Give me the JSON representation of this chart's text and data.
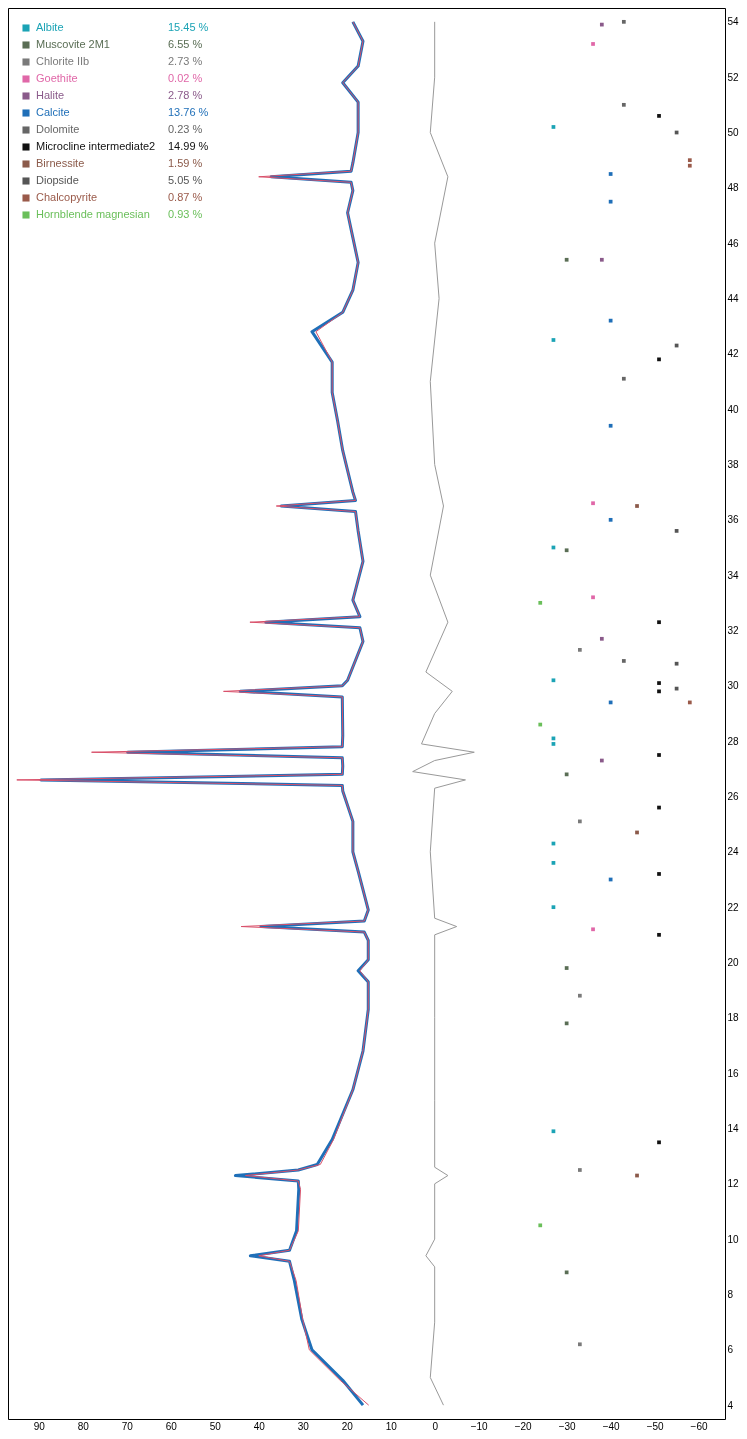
{
  "chart_data": {
    "type": "line",
    "ylim": [
      3.5,
      54.5
    ],
    "yticks": [
      4,
      6,
      8,
      10,
      12,
      14,
      16,
      18,
      20,
      22,
      24,
      26,
      28,
      30,
      32,
      34,
      36,
      38,
      40,
      42,
      44,
      46,
      48,
      50,
      52,
      54
    ],
    "xlim": [
      97,
      -66
    ],
    "xticks": [
      90,
      80,
      70,
      60,
      50,
      40,
      30,
      20,
      10,
      0,
      -10,
      -20,
      -30,
      -40,
      -50,
      -60
    ],
    "legend": "top left",
    "annotations": [
      "15.45 %",
      "6.55 %",
      "2.73 %",
      "0.02 %",
      "2.78 %",
      "13.76 %",
      "0.23 %",
      "14.99 %",
      "1.59 %",
      "5.05 %",
      "0.87 %",
      "0.93 %"
    ],
    "series": [
      {
        "color": "#1f6fb8",
        "values": [
          4.0,
          4.9,
          6.0,
          7.1,
          8.5,
          9.2,
          9.4,
          9.6,
          10.3,
          11.8,
          12.1,
          12.3,
          12.5,
          12.7,
          13.6,
          15.4,
          16.8,
          18.3,
          19.3,
          19.7,
          20.1,
          20.8,
          21.1,
          21.3,
          21.5,
          21.9,
          23.3,
          24.0,
          25.1,
          26.2,
          26.4,
          26.6,
          26.8,
          27.1,
          27.4,
          27.6,
          27.8,
          28.2,
          29.6,
          29.8,
          30.0,
          30.2,
          31.6,
          32.1,
          32.3,
          32.5,
          33.1,
          34.5,
          35.6,
          36.3,
          36.5,
          36.7,
          37.0,
          38.5,
          39.6,
          40.6,
          41.7,
          42.8,
          43.5,
          44.3,
          45.3,
          46.2,
          47.1,
          47.9,
          48.2,
          48.4,
          48.6,
          48.9,
          50.0,
          51.1,
          51.8,
          52.4,
          53.3,
          54.0
        ],
        "x": [
          16.3,
          20.9,
          27.9,
          30.2,
          31.9,
          33,
          41.9,
          33,
          31.4,
          30.9,
          31,
          45.3,
          31,
          26.7,
          23.3,
          18.6,
          16.3,
          15.1,
          15.1,
          17.4,
          15.1,
          15.1,
          16,
          39.5,
          16,
          15.1,
          17.4,
          18.6,
          18.6,
          20.9,
          21,
          89.5,
          21,
          20.9,
          21,
          69.8,
          21,
          20.9,
          21,
          44.2,
          21,
          19.8,
          16.3,
          17,
          38.4,
          17,
          18.6,
          16.3,
          17.4,
          18,
          34.9,
          18,
          18.6,
          20.9,
          22.1,
          23.3,
          23.3,
          27.9,
          20.9,
          18.6,
          17.4,
          18.6,
          19.8,
          18.6,
          19,
          37.2,
          19,
          18.6,
          17.4,
          17.4,
          20.9,
          17.4,
          16.3,
          18.6
        ]
      },
      {
        "color": "#d9506a",
        "values": [
          4.0,
          4.9,
          6.0,
          7.1,
          8.5,
          9.2,
          9.4,
          9.6,
          10.3,
          11.8,
          12.1,
          12.3,
          12.5,
          12.7,
          13.6,
          15.4,
          16.8,
          18.3,
          19.3,
          19.7,
          20.1,
          20.8,
          21.1,
          21.3,
          21.5,
          21.9,
          23.3,
          24.0,
          25.1,
          26.2,
          26.4,
          26.6,
          26.8,
          27.1,
          27.4,
          27.6,
          27.8,
          28.2,
          29.6,
          29.8,
          30.0,
          30.2,
          31.6,
          32.1,
          32.3,
          32.5,
          33.1,
          34.5,
          35.6,
          36.3,
          36.5,
          36.7,
          37.0,
          38.5,
          39.6,
          40.6,
          41.7,
          42.8,
          43.5,
          44.3,
          45.3,
          46.2,
          47.1,
          47.9,
          48.2,
          48.4,
          48.6,
          48.9,
          50.0,
          51.1,
          51.8,
          52.4,
          53.3,
          54.0
        ],
        "x": [
          15,
          21.5,
          28.5,
          30,
          31.5,
          33,
          40,
          33,
          31,
          30.5,
          31,
          43,
          31,
          26,
          23,
          18.6,
          16.3,
          15.1,
          15.1,
          17,
          15.1,
          15.1,
          16,
          44,
          16,
          15.1,
          17.4,
          18.6,
          18.6,
          20.9,
          21,
          95,
          21,
          20.9,
          21,
          78,
          21,
          20.9,
          21,
          48,
          21,
          19.8,
          16.3,
          17,
          42,
          17,
          18.6,
          16.3,
          17.4,
          18,
          36,
          18,
          18.6,
          20.9,
          22.1,
          23.3,
          23.3,
          27,
          20.9,
          18.6,
          17.4,
          18.6,
          19.8,
          18.6,
          19,
          40,
          19,
          18.6,
          17.4,
          17.4,
          20.9,
          17.4,
          16.3,
          18.6
        ]
      },
      {
        "color": "#999999",
        "values": [
          4.0,
          5.0,
          7.0,
          9.0,
          9.4,
          10.0,
          12.0,
          12.3,
          12.6,
          15.0,
          18.0,
          21.0,
          21.3,
          21.6,
          24.0,
          26.3,
          26.6,
          26.9,
          27.3,
          27.6,
          27.9,
          29.0,
          29.8,
          30.5,
          32.3,
          34.0,
          36.5,
          38.0,
          41.0,
          44.0,
          46.0,
          48.4,
          50.0,
          52.0,
          54.0
        ],
        "x": [
          -2,
          1,
          0,
          0,
          2,
          0,
          0,
          -3,
          0,
          0,
          0,
          0,
          -5,
          0,
          1,
          0,
          -7,
          5,
          0,
          -9,
          3,
          0,
          -4,
          2,
          -3,
          1,
          -2,
          0,
          1,
          -1,
          0,
          -3,
          1,
          0,
          0
        ]
      },
      {
        "type": "scatter",
        "marker": "square",
        "name": "Albite",
        "color": "#1ba3b5",
        "values": [
          13.9,
          22.0,
          23.6,
          24.3,
          27.9,
          28.1,
          30.2,
          35.0,
          42.5,
          50.2
        ],
        "x": [
          -27,
          -27,
          -27,
          -27,
          -27,
          -27,
          -27,
          -27,
          -27,
          -27
        ]
      },
      {
        "type": "scatter",
        "marker": "square",
        "name": "Muscovite 2M1",
        "color": "#5a6e55",
        "values": [
          8.8,
          17.8,
          19.8,
          26.8,
          34.9,
          45.4
        ],
        "x": [
          -30,
          -30,
          -30,
          -30,
          -30,
          -30
        ]
      },
      {
        "type": "scatter",
        "marker": "square",
        "name": "Chlorite IIb",
        "color": "#7a7a7a",
        "values": [
          6.2,
          12.5,
          18.8,
          25.1,
          31.3
        ],
        "x": [
          -33,
          -33,
          -33,
          -33,
          -33
        ]
      },
      {
        "type": "scatter",
        "marker": "square",
        "name": "Goethite",
        "color": "#e067a8",
        "values": [
          21.2,
          33.2,
          36.6,
          53.2
        ],
        "x": [
          -36,
          -36,
          -36,
          -36
        ]
      },
      {
        "type": "scatter",
        "marker": "square",
        "name": "Halite",
        "color": "#8a5a8a",
        "values": [
          27.3,
          31.7,
          45.4,
          53.9
        ],
        "x": [
          -38,
          -38,
          -38,
          -38
        ]
      },
      {
        "type": "scatter",
        "marker": "square",
        "name": "Calcite",
        "color": "#1f6fb8",
        "values": [
          23.0,
          29.4,
          36.0,
          39.4,
          43.2,
          47.5,
          48.5
        ],
        "x": [
          -40,
          -40,
          -40,
          -40,
          -40,
          -40,
          -40
        ]
      },
      {
        "type": "scatter",
        "marker": "square",
        "name": "Dolomite",
        "color": "#666666",
        "values": [
          30.9,
          41.1,
          51.0,
          54.0
        ],
        "x": [
          -43,
          -43,
          -43,
          -43
        ]
      },
      {
        "type": "scatter",
        "marker": "square",
        "name": "Microcline intermediate2",
        "color": "#111111",
        "values": [
          13.5,
          21.0,
          23.2,
          25.6,
          27.5,
          29.8,
          30.1,
          32.3,
          41.8,
          50.6
        ],
        "x": [
          -51,
          -51,
          -51,
          -51,
          -51,
          -51,
          -51,
          -51,
          -51,
          -51
        ]
      },
      {
        "type": "scatter",
        "marker": "square",
        "name": "Birnessite",
        "color": "#8b5a4a",
        "values": [
          12.3,
          24.7,
          36.5
        ],
        "x": [
          -46,
          -46,
          -46
        ]
      },
      {
        "type": "scatter",
        "marker": "square",
        "name": "Diopside",
        "color": "#555555",
        "values": [
          29.9,
          30.8,
          35.6,
          42.3,
          50.0
        ],
        "x": [
          -55,
          -55,
          -55,
          -55,
          -55
        ]
      },
      {
        "type": "scatter",
        "marker": "square",
        "name": "Chalcopyrite",
        "color": "#9a5a4a",
        "values": [
          29.4,
          48.8,
          49.0
        ],
        "x": [
          -58,
          -58,
          -58
        ]
      },
      {
        "type": "scatter",
        "marker": "square",
        "name": "Hornblende magnesian",
        "color": "#6abf5a",
        "values": [
          10.5,
          28.6,
          33.0
        ],
        "x": [
          -24,
          -24,
          -24
        ]
      }
    ]
  }
}
